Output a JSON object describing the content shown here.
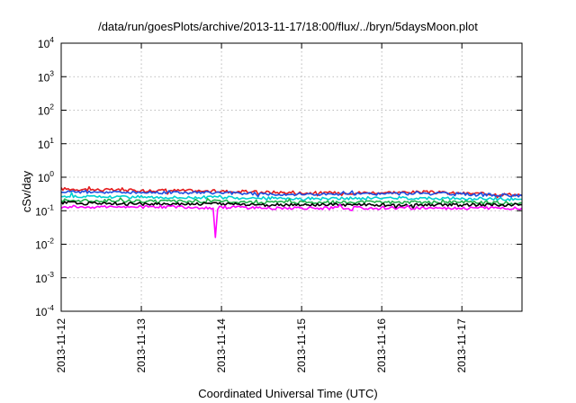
{
  "chart_data": {
    "type": "line",
    "title": "/data/run/goesPlots/archive/2013-11-17/18:00/flux/../bryn/5daysMoon.plot",
    "xlabel": "Coordinated Universal Time (UTC)",
    "ylabel": "cSv/day",
    "y_scale": "log",
    "ylim": [
      0.0001,
      10000
    ],
    "y_ticks": [
      {
        "base": "10",
        "exp": "-4"
      },
      {
        "base": "10",
        "exp": "-3"
      },
      {
        "base": "10",
        "exp": "-2"
      },
      {
        "base": "10",
        "exp": "-1"
      },
      {
        "base": "10",
        "exp": "0"
      },
      {
        "base": "10",
        "exp": "1"
      },
      {
        "base": "10",
        "exp": "2"
      },
      {
        "base": "10",
        "exp": "3"
      },
      {
        "base": "10",
        "exp": "4"
      }
    ],
    "xlim": [
      "2013-11-12",
      "2013-11-17T18:00"
    ],
    "x_ticks": [
      "2013-11-12",
      "2013-11-13",
      "2013-11-14",
      "2013-11-15",
      "2013-11-16",
      "2013-11-17"
    ],
    "grid": true,
    "series": [
      {
        "color": "#e41a1c",
        "values": [
          [
            "2013-11-12",
            0.45
          ],
          [
            "2013-11-12T12:00",
            0.42
          ],
          [
            "2013-11-13",
            0.4
          ],
          [
            "2013-11-13T12:00",
            0.4
          ],
          [
            "2013-11-14",
            0.38
          ],
          [
            "2013-11-14T12:00",
            0.36
          ],
          [
            "2013-11-15",
            0.34
          ],
          [
            "2013-11-15T12:00",
            0.34
          ],
          [
            "2013-11-16",
            0.35
          ],
          [
            "2013-11-16T12:00",
            0.36
          ],
          [
            "2013-11-17",
            0.33
          ],
          [
            "2013-11-17T18:00",
            0.3
          ]
        ]
      },
      {
        "color": "#1f4fe0",
        "values": [
          [
            "2013-11-12",
            0.38
          ],
          [
            "2013-11-12T12:00",
            0.36
          ],
          [
            "2013-11-13",
            0.35
          ],
          [
            "2013-11-13T12:00",
            0.35
          ],
          [
            "2013-11-14",
            0.34
          ],
          [
            "2013-11-14T12:00",
            0.32
          ],
          [
            "2013-11-15",
            0.31
          ],
          [
            "2013-11-15T12:00",
            0.31
          ],
          [
            "2013-11-16",
            0.32
          ],
          [
            "2013-11-16T12:00",
            0.33
          ],
          [
            "2013-11-17",
            0.31
          ],
          [
            "2013-11-17T18:00",
            0.28
          ]
        ]
      },
      {
        "color": "#00d0d0",
        "values": [
          [
            "2013-11-12",
            0.27
          ],
          [
            "2013-11-12T12:00",
            0.26
          ],
          [
            "2013-11-13",
            0.26
          ],
          [
            "2013-11-13T12:00",
            0.25
          ],
          [
            "2013-11-14",
            0.25
          ],
          [
            "2013-11-14T12:00",
            0.24
          ],
          [
            "2013-11-15",
            0.23
          ],
          [
            "2013-11-15T12:00",
            0.23
          ],
          [
            "2013-11-16",
            0.24
          ],
          [
            "2013-11-16T12:00",
            0.24
          ],
          [
            "2013-11-17",
            0.23
          ],
          [
            "2013-11-17T18:00",
            0.22
          ]
        ]
      },
      {
        "color": "#22b14c",
        "values": [
          [
            "2013-11-12",
            0.2
          ],
          [
            "2013-11-12T12:00",
            0.2
          ],
          [
            "2013-11-13",
            0.19
          ],
          [
            "2013-11-13T12:00",
            0.19
          ],
          [
            "2013-11-14",
            0.19
          ],
          [
            "2013-11-14T12:00",
            0.18
          ],
          [
            "2013-11-15",
            0.18
          ],
          [
            "2013-11-15T12:00",
            0.18
          ],
          [
            "2013-11-16",
            0.18
          ],
          [
            "2013-11-16T12:00",
            0.18
          ],
          [
            "2013-11-17",
            0.18
          ],
          [
            "2013-11-17T18:00",
            0.17
          ]
        ]
      },
      {
        "color": "#000000",
        "values": [
          [
            "2013-11-12",
            0.17
          ],
          [
            "2013-11-12T12:00",
            0.17
          ],
          [
            "2013-11-13",
            0.16
          ],
          [
            "2013-11-13T12:00",
            0.16
          ],
          [
            "2013-11-14",
            0.16
          ],
          [
            "2013-11-14T12:00",
            0.15
          ],
          [
            "2013-11-15",
            0.15
          ],
          [
            "2013-11-15T12:00",
            0.15
          ],
          [
            "2013-11-16",
            0.15
          ],
          [
            "2013-11-16T12:00",
            0.15
          ],
          [
            "2013-11-17",
            0.15
          ],
          [
            "2013-11-17T18:00",
            0.15
          ]
        ]
      },
      {
        "color": "#ff00ff",
        "values": [
          [
            "2013-11-12",
            0.13
          ],
          [
            "2013-11-12T12:00",
            0.13
          ],
          [
            "2013-11-13",
            0.13
          ],
          [
            "2013-11-13T12:00",
            0.13
          ],
          [
            "2013-11-13T21:30",
            0.12
          ],
          [
            "2013-11-13T22:10",
            0.016
          ],
          [
            "2013-11-13T22:50",
            0.12
          ],
          [
            "2013-11-14",
            0.13
          ],
          [
            "2013-11-14T12:00",
            0.12
          ],
          [
            "2013-11-15",
            0.12
          ],
          [
            "2013-11-15T12:00",
            0.12
          ],
          [
            "2013-11-16",
            0.12
          ],
          [
            "2013-11-16T12:00",
            0.12
          ],
          [
            "2013-11-17",
            0.12
          ],
          [
            "2013-11-17T18:00",
            0.12
          ]
        ]
      }
    ]
  }
}
